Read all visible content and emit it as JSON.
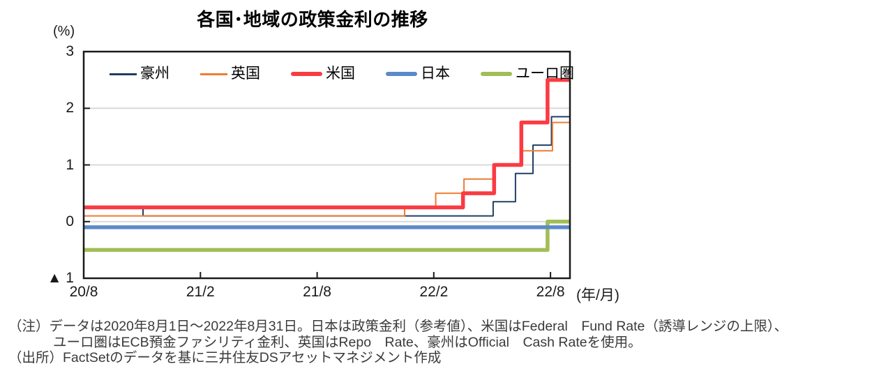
{
  "title": "各国･地域の政策金利の推移",
  "axes": {
    "y_unit_label": "(%)",
    "x_unit_label": "(年/月)",
    "y_ticks": [
      {
        "value": 3,
        "label": "3"
      },
      {
        "value": 2,
        "label": "2"
      },
      {
        "value": 1,
        "label": "1"
      },
      {
        "value": 0,
        "label": "0"
      },
      {
        "value": -1,
        "label": "▲ 1"
      }
    ],
    "x_ticks": [
      {
        "month": 0,
        "label": "20/8"
      },
      {
        "month": 6,
        "label": "21/2"
      },
      {
        "month": 12,
        "label": "21/8"
      },
      {
        "month": 18,
        "label": "22/2"
      },
      {
        "month": 24,
        "label": "22/8"
      }
    ]
  },
  "legend": [
    {
      "name": "豪州",
      "color": "#1F3D63",
      "thick": false
    },
    {
      "name": "英国",
      "color": "#ED7D31",
      "thick": false
    },
    {
      "name": "米国",
      "color": "#FA3B42",
      "thick": true
    },
    {
      "name": "日本",
      "color": "#5B8AC9",
      "thick": true
    },
    {
      "name": "ユーロ圏",
      "color": "#A2BD56",
      "thick": true
    }
  ],
  "chart_data": {
    "type": "line",
    "step": true,
    "title": "各国･地域の政策金利の推移",
    "ylabel": "(%)",
    "xlabel": "(年/月)",
    "x_axis_note": "x = months since 2020/8; data from 2020/8/1 to 2022/8/31",
    "xlim": [
      0,
      25
    ],
    "ylim": [
      -1,
      3
    ],
    "gridlines_y": [
      2,
      1,
      0
    ],
    "legend_position": "top-inside",
    "series": [
      {
        "name": "ユーロ圏",
        "color": "#A2BD56",
        "width": 5.5,
        "points": [
          [
            0,
            -0.5
          ],
          [
            23.85,
            0.0
          ],
          [
            25,
            0.0
          ]
        ]
      },
      {
        "name": "日本",
        "color": "#5B8AC9",
        "width": 5.5,
        "points": [
          [
            0,
            -0.1
          ],
          [
            25,
            -0.1
          ]
        ]
      },
      {
        "name": "豪州",
        "color": "#1F4066",
        "width": 2,
        "points": [
          [
            0,
            0.25
          ],
          [
            3.05,
            0.1
          ],
          [
            21.05,
            0.35
          ],
          [
            22.2,
            0.85
          ],
          [
            23.1,
            1.35
          ],
          [
            24.05,
            1.85
          ],
          [
            25,
            1.85
          ]
        ]
      },
      {
        "name": "英国",
        "color": "#ED7D31",
        "width": 2,
        "points": [
          [
            0,
            0.1
          ],
          [
            16.5,
            0.25
          ],
          [
            18.1,
            0.5
          ],
          [
            19.55,
            0.75
          ],
          [
            21.1,
            1.0
          ],
          [
            22.5,
            1.25
          ],
          [
            24.1,
            1.75
          ],
          [
            25,
            1.75
          ]
        ]
      },
      {
        "name": "米国",
        "color": "#FA3B42",
        "width": 5.5,
        "points": [
          [
            0,
            0.25
          ],
          [
            19.5,
            0.5
          ],
          [
            21.1,
            1.0
          ],
          [
            22.5,
            1.75
          ],
          [
            23.85,
            2.5
          ],
          [
            25,
            2.5
          ]
        ]
      }
    ]
  },
  "notes": {
    "line1": "（注）データは2020年8月1日～2022年8月31日。日本は政策金利（参考値）、米国はFederal　Fund Rate（誘導レンジの上限）、",
    "line2": "ユーロ圏はECB預金ファシリティ金利、英国はRepo　Rate、豪州はOfficial　Cash Rateを使用。",
    "line3": "（出所）FactSetのデータを基に三井住友DSアセットマネジメント作成"
  },
  "colors": {
    "grid": "#D9D9D9",
    "axis": "#1A1A1A"
  }
}
